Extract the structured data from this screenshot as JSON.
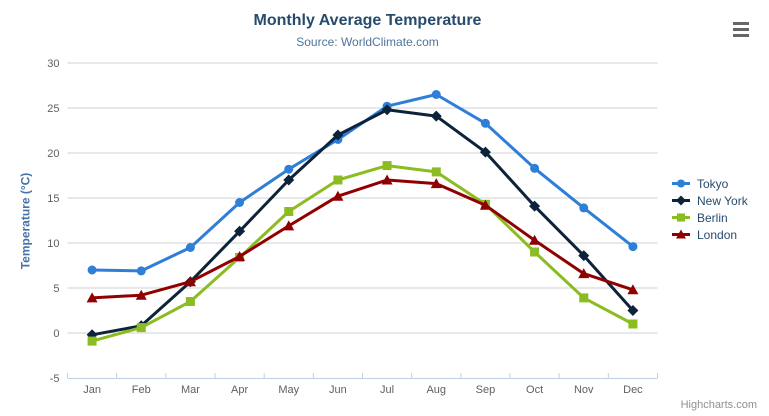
{
  "header": {
    "title": "Monthly Average Temperature",
    "subtitle": "Source: WorldClimate.com"
  },
  "credit": "Highcharts.com",
  "icons": {
    "context_menu": "hamburger"
  },
  "colors": {
    "title": "#274b6d",
    "subtitle": "#4d759e",
    "axis_label": "#606060",
    "axis_title": "#4572a7",
    "grid": "#d0d0d0",
    "axis_line": "#c0d0e0",
    "legend_text": "#274b6d",
    "credit": "#909090",
    "menu_icon": "#666666",
    "background": "#ffffff"
  },
  "chart_data": {
    "type": "line",
    "title": "Monthly Average Temperature",
    "subtitle": "Source: WorldClimate.com",
    "xlabel": "",
    "ylabel": "Temperature (°C)",
    "ylim": [
      -5,
      30
    ],
    "ytick_interval": 5,
    "yticks": [
      -5,
      0,
      5,
      10,
      15,
      20,
      25,
      30
    ],
    "grid": true,
    "legend_position": "right",
    "categories": [
      "Jan",
      "Feb",
      "Mar",
      "Apr",
      "May",
      "Jun",
      "Jul",
      "Aug",
      "Sep",
      "Oct",
      "Nov",
      "Dec"
    ],
    "series": [
      {
        "name": "Tokyo",
        "color": "#2f7ed8",
        "marker": "circle",
        "values": [
          7.0,
          6.9,
          9.5,
          14.5,
          18.2,
          21.5,
          25.2,
          26.5,
          23.3,
          18.3,
          13.9,
          9.6
        ]
      },
      {
        "name": "New York",
        "color": "#0d233a",
        "marker": "diamond",
        "values": [
          -0.2,
          0.8,
          5.7,
          11.3,
          17.0,
          22.0,
          24.8,
          24.1,
          20.1,
          14.1,
          8.6,
          2.5
        ]
      },
      {
        "name": "Berlin",
        "color": "#8bbc21",
        "marker": "square",
        "values": [
          -0.9,
          0.6,
          3.5,
          8.4,
          13.5,
          17.0,
          18.6,
          17.9,
          14.3,
          9.0,
          3.9,
          1.0
        ]
      },
      {
        "name": "London",
        "color": "#910000",
        "marker": "triangle",
        "values": [
          3.9,
          4.2,
          5.7,
          8.5,
          11.9,
          15.2,
          17.0,
          16.6,
          14.2,
          10.3,
          6.6,
          4.8
        ]
      }
    ]
  }
}
